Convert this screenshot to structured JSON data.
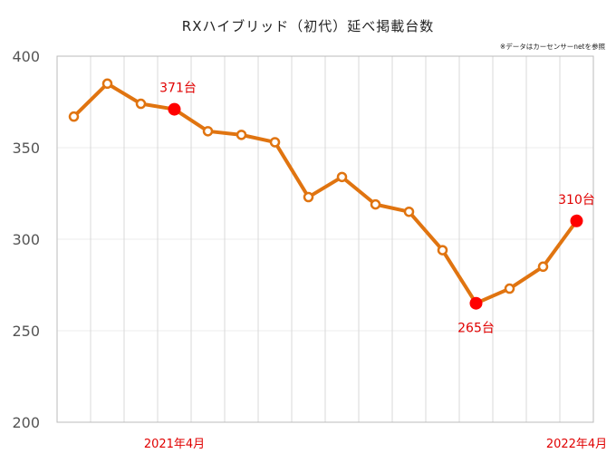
{
  "chart_data": {
    "type": "line",
    "title": "RXハイブリッド（初代）延べ掲載台数",
    "note": "※データはカーセンサーnetを参照",
    "ylim": [
      200,
      400
    ],
    "yticks": [
      200,
      250,
      300,
      350,
      400
    ],
    "xtick_labels": [
      {
        "index": 3,
        "label": "2021年4月"
      },
      {
        "index": 15,
        "label": "2022年4月"
      }
    ],
    "values": [
      367,
      385,
      374,
      371,
      359,
      357,
      353,
      323,
      334,
      319,
      315,
      294,
      265,
      273,
      285,
      310
    ],
    "highlights": [
      {
        "index": 3,
        "label": "371台",
        "position": "above"
      },
      {
        "index": 12,
        "label": "265台",
        "position": "below"
      },
      {
        "index": 15,
        "label": "310台",
        "position": "above"
      }
    ],
    "grid": true,
    "colors": {
      "line": "#e07410",
      "highlight": "#ff0000",
      "label": "#e00000"
    }
  }
}
